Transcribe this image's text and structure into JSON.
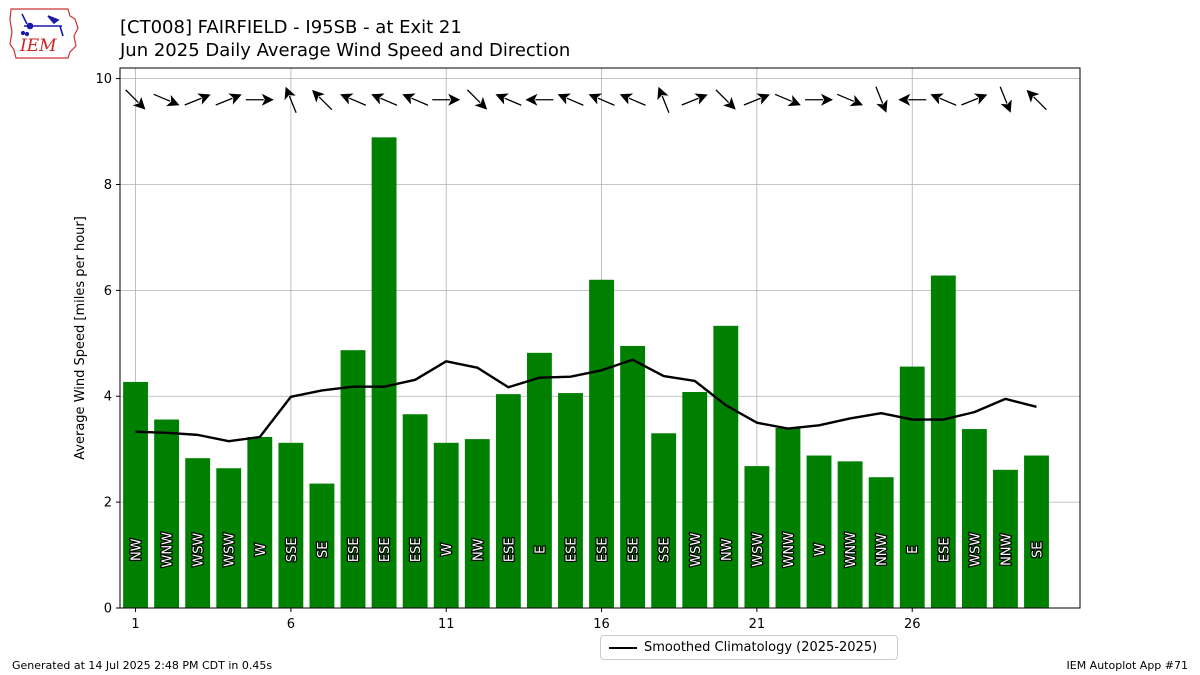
{
  "header": {
    "title_line1": "[CT008] FAIRFIELD - I95SB - at Exit 21",
    "title_line2": "Jun 2025 Daily Average Wind Speed and Direction"
  },
  "logo": {
    "text": "IEM",
    "icon": "iem-iowa-logo-icon"
  },
  "footer": {
    "left": "Generated at 14 Jul 2025 2:48 PM CDT in 0.45s",
    "right": "IEM Autoplot App #71"
  },
  "legend": {
    "label": "Smoothed Climatology (2025-2025)"
  },
  "colors": {
    "bar": "#008000",
    "line": "#000000",
    "grid": "#b0b0b0",
    "arrow": "#000000"
  },
  "chart_data": {
    "type": "bar",
    "ylabel": "Average Wind Speed [miles per hour]",
    "ylim": [
      0,
      10.2
    ],
    "xlim": [
      0.5,
      31.4
    ],
    "grid": true,
    "legend_position": "below-center",
    "x_ticks": [
      "1",
      "6",
      "11",
      "16",
      "21",
      "26"
    ],
    "y_ticks": [
      "0",
      "2",
      "4",
      "6",
      "8",
      "10"
    ],
    "days": [
      1,
      2,
      3,
      4,
      5,
      6,
      7,
      8,
      9,
      10,
      11,
      12,
      13,
      14,
      15,
      16,
      17,
      18,
      19,
      20,
      21,
      22,
      23,
      24,
      25,
      26,
      27,
      28,
      29,
      30
    ],
    "series": [
      {
        "kind": "bar",
        "values": [
          4.27,
          3.56,
          2.83,
          2.64,
          3.23,
          3.12,
          2.35,
          4.87,
          8.89,
          3.66,
          3.12,
          3.19,
          4.04,
          4.82,
          4.06,
          6.2,
          4.95,
          3.3,
          4.08,
          5.33,
          2.68,
          3.4,
          2.88,
          2.77,
          2.47,
          4.56,
          6.28,
          3.38,
          2.61,
          2.88
        ]
      },
      {
        "kind": "line",
        "name": "Smoothed Climatology (2025-2025)",
        "values": [
          3.33,
          3.31,
          3.27,
          3.15,
          3.23,
          3.99,
          4.11,
          4.18,
          4.18,
          4.31,
          4.66,
          4.54,
          4.17,
          4.35,
          4.37,
          4.49,
          4.69,
          4.38,
          4.29,
          3.83,
          3.5,
          3.39,
          3.45,
          3.58,
          3.68,
          3.56,
          3.56,
          3.7,
          3.95,
          3.8
        ]
      }
    ],
    "direction_labels": [
      "NW",
      "WNW",
      "WSW",
      "WSW",
      "W",
      "SSE",
      "SE",
      "ESE",
      "ESE",
      "ESE",
      "W",
      "NW",
      "ESE",
      "E",
      "ESE",
      "ESE",
      "ESE",
      "SSE",
      "WSW",
      "NW",
      "WSW",
      "WNW",
      "W",
      "WNW",
      "NNW",
      "E",
      "ESE",
      "WSW",
      "NNW",
      "SE"
    ],
    "direction_degrees": [
      315,
      293,
      248,
      248,
      270,
      158,
      135,
      113,
      113,
      113,
      270,
      315,
      113,
      90,
      113,
      113,
      113,
      158,
      248,
      315,
      248,
      293,
      270,
      293,
      338,
      90,
      113,
      248,
      338,
      135
    ]
  }
}
